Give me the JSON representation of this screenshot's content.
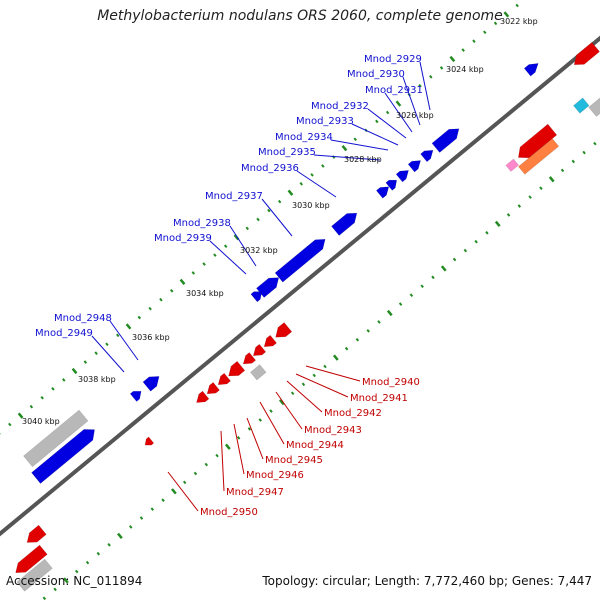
{
  "title": "Methylobacterium nodulans ORS 2060, complete genome",
  "footer": {
    "accession": "Accession: NC_011894",
    "summary": "Topology: circular; Length: 7,772,460 bp; Genes: 7,447"
  },
  "kbp_labels": [
    "3022 kbp",
    "3024 kbp",
    "3026 kbp",
    "3028 kbp",
    "3030 kbp",
    "3032 kbp",
    "3034 kbp",
    "3036 kbp",
    "3038 kbp",
    "3040 kbp"
  ],
  "forward_genes": [
    "Mnod_2929",
    "Mnod_2930",
    "Mnod_2931",
    "Mnod_2932",
    "Mnod_2933",
    "Mnod_2934",
    "Mnod_2935",
    "Mnod_2936",
    "Mnod_2937",
    "Mnod_2938",
    "Mnod_2939",
    "Mnod_2948",
    "Mnod_2949"
  ],
  "reverse_genes": [
    "Mnod_2940",
    "Mnod_2941",
    "Mnod_2942",
    "Mnod_2943",
    "Mnod_2944",
    "Mnod_2945",
    "Mnod_2946",
    "Mnod_2947",
    "Mnod_2950"
  ],
  "colors": {
    "forward": "#0000e0",
    "reverse": "#e00000",
    "other": "#b8b8b8",
    "backbone": "#555555",
    "tick": "#228b22",
    "label_blue": "#1010d0",
    "label_red": "#c00000",
    "cyan": "#22bbdd",
    "orange": "#ff8040",
    "pink": "#ff88cc"
  }
}
